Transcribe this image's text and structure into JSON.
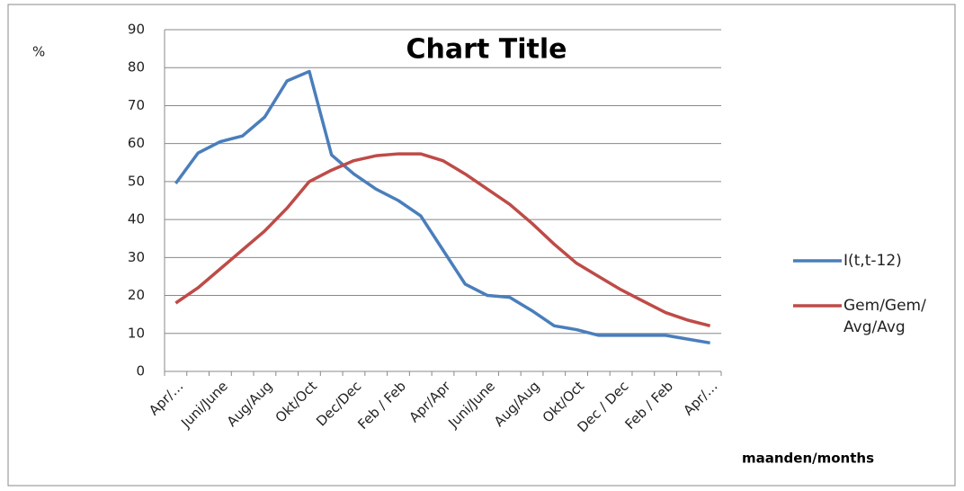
{
  "chart_data": {
    "type": "line",
    "title": "Chart Title",
    "y_label": "%",
    "x_label": "maanden/months",
    "categories": [
      "Apr/…",
      null,
      "Juni/June",
      null,
      "Aug/Aug",
      null,
      "Okt/Oct",
      null,
      "Dec/Dec",
      null,
      "Feb / Feb",
      null,
      "Apr/Apr",
      null,
      "Juni/June",
      null,
      "Aug/Aug",
      null,
      "Okt/Oct",
      null,
      "Dec / Dec",
      null,
      "Feb / Feb",
      null,
      "Apr/…"
    ],
    "series": [
      {
        "name": "I(t,t-12)",
        "color": "#4a7ebb",
        "values": [
          49.5,
          57.5,
          60.5,
          62,
          67,
          76.5,
          79,
          57,
          52,
          48,
          45,
          41,
          32,
          23,
          20,
          19.5,
          16,
          12,
          11,
          9.5,
          9.5,
          9.5,
          9.5,
          8.5,
          7.5
        ]
      },
      {
        "name": "Gem/Gem/ Avg/Avg",
        "color": "#be4b48",
        "values": [
          18,
          22,
          27,
          32,
          37,
          43,
          50,
          53,
          55.5,
          56.8,
          57.3,
          57.3,
          55.5,
          52,
          48,
          44,
          39,
          33.5,
          28.5,
          25,
          21.5,
          18.5,
          15.5,
          13.5,
          12
        ]
      }
    ],
    "ylim": [
      0,
      90
    ],
    "yticks": [
      0,
      10,
      20,
      30,
      40,
      50,
      60,
      70,
      80,
      90
    ],
    "grid": true,
    "legend": "right"
  }
}
